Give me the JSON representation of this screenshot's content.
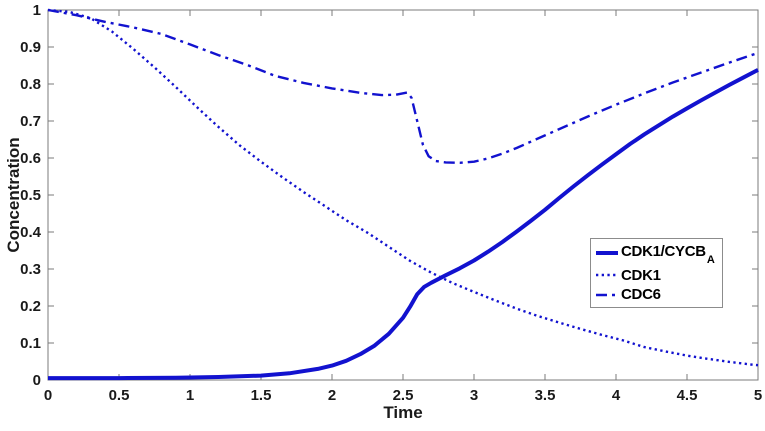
{
  "chart_data": {
    "type": "line",
    "title": "",
    "xlabel": "Time",
    "ylabel": "Concentration",
    "xlim": [
      0,
      5
    ],
    "ylim": [
      0,
      1
    ],
    "grid": false,
    "legend_position": "right-middle",
    "colors": {
      "line": "#1212cf",
      "axis": "#7b7b7b",
      "tick_label": "#1a1a1a",
      "text": "#000000",
      "legend_border": "#8c8c8c",
      "background": "#ffffff"
    },
    "xticks": [
      {
        "v": 0,
        "label": "0"
      },
      {
        "v": 0.5,
        "label": "0.5"
      },
      {
        "v": 1,
        "label": "1"
      },
      {
        "v": 1.5,
        "label": "1.5"
      },
      {
        "v": 2,
        "label": "2"
      },
      {
        "v": 2.5,
        "label": "2.5"
      },
      {
        "v": 3,
        "label": "3"
      },
      {
        "v": 3.5,
        "label": "3.5"
      },
      {
        "v": 4,
        "label": "4"
      },
      {
        "v": 4.5,
        "label": "4.5"
      },
      {
        "v": 5,
        "label": "5"
      }
    ],
    "yticks": [
      {
        "v": 0,
        "label": "0"
      },
      {
        "v": 0.1,
        "label": "0.1"
      },
      {
        "v": 0.2,
        "label": "0.2"
      },
      {
        "v": 0.3,
        "label": "0.3"
      },
      {
        "v": 0.4,
        "label": "0.4"
      },
      {
        "v": 0.5,
        "label": "0.5"
      },
      {
        "v": 0.6,
        "label": "0.6"
      },
      {
        "v": 0.7,
        "label": "0.7"
      },
      {
        "v": 0.8,
        "label": "0.8"
      },
      {
        "v": 0.9,
        "label": "0.9"
      },
      {
        "v": 1,
        "label": "1"
      }
    ],
    "series": [
      {
        "key": "cdk1-cycb-a",
        "label": "CDK1/CYCB",
        "label_sub": "A",
        "linestyle": "solid",
        "points": [
          [
            0,
            0.005
          ],
          [
            0.5,
            0.005
          ],
          [
            0.9,
            0.006
          ],
          [
            1.2,
            0.008
          ],
          [
            1.5,
            0.012
          ],
          [
            1.7,
            0.018
          ],
          [
            1.9,
            0.03
          ],
          [
            2.0,
            0.039
          ],
          [
            2.1,
            0.052
          ],
          [
            2.2,
            0.07
          ],
          [
            2.3,
            0.093
          ],
          [
            2.4,
            0.125
          ],
          [
            2.5,
            0.168
          ],
          [
            2.55,
            0.198
          ],
          [
            2.6,
            0.232
          ],
          [
            2.65,
            0.252
          ],
          [
            2.7,
            0.263
          ],
          [
            2.8,
            0.283
          ],
          [
            2.9,
            0.302
          ],
          [
            3.0,
            0.323
          ],
          [
            3.1,
            0.347
          ],
          [
            3.2,
            0.373
          ],
          [
            3.3,
            0.401
          ],
          [
            3.4,
            0.43
          ],
          [
            3.5,
            0.46
          ],
          [
            3.6,
            0.492
          ],
          [
            3.7,
            0.523
          ],
          [
            3.8,
            0.553
          ],
          [
            3.9,
            0.582
          ],
          [
            4.0,
            0.61
          ],
          [
            4.1,
            0.638
          ],
          [
            4.2,
            0.664
          ],
          [
            4.3,
            0.688
          ],
          [
            4.4,
            0.712
          ],
          [
            4.5,
            0.734
          ],
          [
            4.6,
            0.756
          ],
          [
            4.7,
            0.777
          ],
          [
            4.8,
            0.798
          ],
          [
            4.9,
            0.818
          ],
          [
            5.0,
            0.838
          ]
        ]
      },
      {
        "key": "cdk1",
        "label": "CDK1",
        "label_sub": "",
        "linestyle": "dotted",
        "points": [
          [
            0,
            1.0
          ],
          [
            0.15,
            0.995
          ],
          [
            0.3,
            0.978
          ],
          [
            0.45,
            0.942
          ],
          [
            0.6,
            0.895
          ],
          [
            0.75,
            0.845
          ],
          [
            0.9,
            0.792
          ],
          [
            1.05,
            0.737
          ],
          [
            1.2,
            0.684
          ],
          [
            1.35,
            0.634
          ],
          [
            1.5,
            0.59
          ],
          [
            1.65,
            0.548
          ],
          [
            1.8,
            0.508
          ],
          [
            1.95,
            0.47
          ],
          [
            2.1,
            0.432
          ],
          [
            2.25,
            0.398
          ],
          [
            2.4,
            0.36
          ],
          [
            2.55,
            0.322
          ],
          [
            2.7,
            0.29
          ],
          [
            2.85,
            0.262
          ],
          [
            3.0,
            0.238
          ],
          [
            3.15,
            0.215
          ],
          [
            3.3,
            0.193
          ],
          [
            3.45,
            0.173
          ],
          [
            3.6,
            0.155
          ],
          [
            3.75,
            0.138
          ],
          [
            3.9,
            0.122
          ],
          [
            4.05,
            0.107
          ],
          [
            4.2,
            0.089
          ],
          [
            4.35,
            0.077
          ],
          [
            4.5,
            0.066
          ],
          [
            4.65,
            0.057
          ],
          [
            4.8,
            0.049
          ],
          [
            4.95,
            0.042
          ],
          [
            5.0,
            0.04
          ]
        ]
      },
      {
        "key": "cdc6",
        "label": "CDC6",
        "label_sub": "",
        "linestyle": "dashdot",
        "points": [
          [
            0,
            1.0
          ],
          [
            0.2,
            0.986
          ],
          [
            0.4,
            0.968
          ],
          [
            0.6,
            0.953
          ],
          [
            0.8,
            0.935
          ],
          [
            1.0,
            0.907
          ],
          [
            1.2,
            0.878
          ],
          [
            1.4,
            0.852
          ],
          [
            1.6,
            0.822
          ],
          [
            1.8,
            0.803
          ],
          [
            2.0,
            0.788
          ],
          [
            2.2,
            0.776
          ],
          [
            2.35,
            0.77
          ],
          [
            2.45,
            0.771
          ],
          [
            2.53,
            0.777
          ],
          [
            2.56,
            0.763
          ],
          [
            2.6,
            0.7
          ],
          [
            2.64,
            0.636
          ],
          [
            2.68,
            0.605
          ],
          [
            2.73,
            0.592
          ],
          [
            2.8,
            0.588
          ],
          [
            2.9,
            0.587
          ],
          [
            3.0,
            0.59
          ],
          [
            3.1,
            0.599
          ],
          [
            3.2,
            0.612
          ],
          [
            3.3,
            0.627
          ],
          [
            3.4,
            0.644
          ],
          [
            3.5,
            0.661
          ],
          [
            3.6,
            0.678
          ],
          [
            3.7,
            0.695
          ],
          [
            3.8,
            0.712
          ],
          [
            3.9,
            0.728
          ],
          [
            4.0,
            0.744
          ],
          [
            4.2,
            0.775
          ],
          [
            4.4,
            0.804
          ],
          [
            4.6,
            0.831
          ],
          [
            4.8,
            0.858
          ],
          [
            5.0,
            0.884
          ]
        ]
      }
    ]
  }
}
